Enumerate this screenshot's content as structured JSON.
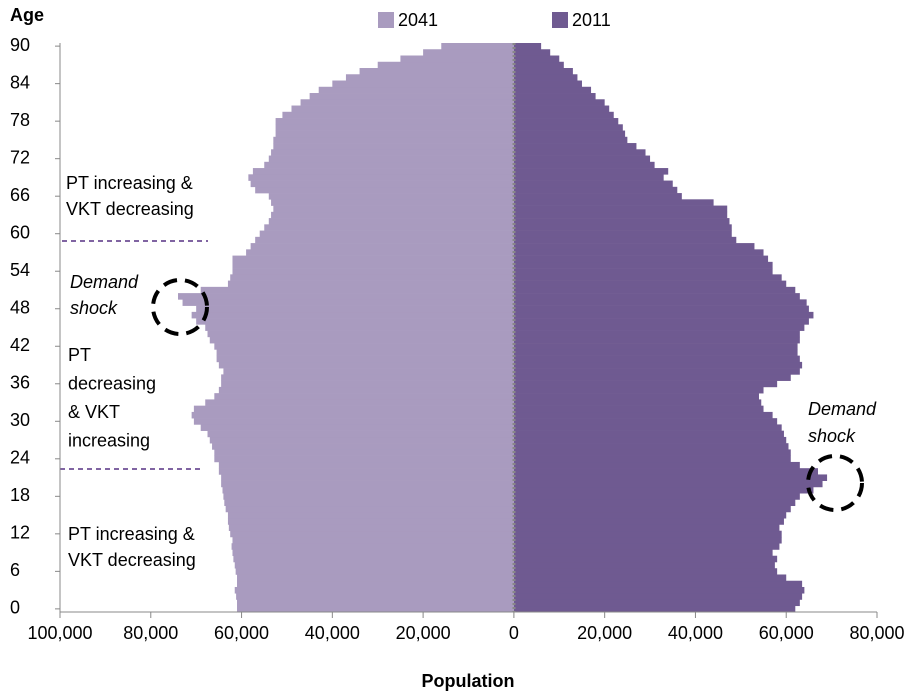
{
  "chart_data": {
    "type": "bar",
    "orientation": "horizontal",
    "y_title": "Age",
    "x_title": "Population",
    "y": [
      0,
      1,
      2,
      3,
      4,
      5,
      6,
      7,
      8,
      9,
      10,
      11,
      12,
      13,
      14,
      15,
      16,
      17,
      18,
      19,
      20,
      21,
      22,
      23,
      24,
      25,
      26,
      27,
      28,
      29,
      30,
      31,
      32,
      33,
      34,
      35,
      36,
      37,
      38,
      39,
      40,
      41,
      42,
      43,
      44,
      45,
      46,
      47,
      48,
      49,
      50,
      51,
      52,
      53,
      54,
      55,
      56,
      57,
      58,
      59,
      60,
      61,
      62,
      63,
      64,
      65,
      66,
      67,
      68,
      69,
      70,
      71,
      72,
      73,
      74,
      75,
      76,
      77,
      78,
      79,
      80,
      81,
      82,
      83,
      84,
      85,
      86,
      87,
      88,
      89,
      90
    ],
    "series": [
      {
        "name": "2041",
        "color": "#a99bbf",
        "values": [
          -61000,
          -61000,
          -61200,
          -61500,
          -61000,
          -61000,
          -61300,
          -61500,
          -61800,
          -62000,
          -62200,
          -62000,
          -62500,
          -62800,
          -63000,
          -63000,
          -63500,
          -63800,
          -64000,
          -64200,
          -64500,
          -64500,
          -65000,
          -65000,
          -66000,
          -66000,
          -66500,
          -67000,
          -67500,
          -69000,
          -70500,
          -71000,
          -70500,
          -68000,
          -66000,
          -65000,
          -64500,
          -64500,
          -64000,
          -65000,
          -65500,
          -65500,
          -66000,
          -67000,
          -67500,
          -68000,
          -70000,
          -71000,
          -70000,
          -73000,
          -74000,
          -69000,
          -63000,
          -62500,
          -62000,
          -62000,
          -62000,
          -59000,
          -58000,
          -57000,
          -56000,
          -55000,
          -54000,
          -53500,
          -53000,
          -53500,
          -54000,
          -57000,
          -58000,
          -58500,
          -57500,
          -55000,
          -54000,
          -53500,
          -53000,
          -53000,
          -52500,
          -52500,
          -52500,
          -51000,
          -49000,
          -47000,
          -45000,
          -43000,
          -40000,
          -37000,
          -34000,
          -30000,
          -25000,
          -20000,
          -16000
        ]
      },
      {
        "name": "2011",
        "color": "#6f5a91",
        "values": [
          62000,
          63000,
          63500,
          64000,
          63500,
          60000,
          58000,
          57500,
          58000,
          57000,
          58500,
          59000,
          59000,
          58500,
          59500,
          60000,
          61000,
          62000,
          63000,
          66000,
          68000,
          69000,
          67000,
          63000,
          61000,
          61000,
          60500,
          60000,
          59500,
          59000,
          58000,
          57000,
          55000,
          54500,
          54000,
          55000,
          58000,
          61000,
          63000,
          63500,
          63000,
          62500,
          62500,
          63000,
          63000,
          64000,
          65000,
          66000,
          65000,
          64500,
          63000,
          62000,
          60000,
          59000,
          57000,
          57000,
          56000,
          55000,
          53000,
          49000,
          48000,
          48000,
          47500,
          47000,
          47000,
          44000,
          37000,
          36000,
          35000,
          33000,
          34000,
          31000,
          30000,
          29000,
          27000,
          25000,
          24500,
          24000,
          23000,
          22000,
          21000,
          20000,
          18000,
          17000,
          15000,
          14000,
          13000,
          11000,
          10000,
          8000,
          6000
        ]
      }
    ],
    "xlim": [
      -100000,
      80000
    ],
    "xticks": [
      {
        "value": -100000,
        "label": "100,000"
      },
      {
        "value": -80000,
        "label": "80,000"
      },
      {
        "value": -60000,
        "label": "60,000"
      },
      {
        "value": -40000,
        "label": "40,000"
      },
      {
        "value": -20000,
        "label": "20,000"
      },
      0,
      {
        "value": 20000,
        "label": "20,000"
      },
      {
        "value": 40000,
        "label": "40,000"
      },
      {
        "value": 60000,
        "label": "60,000"
      },
      {
        "value": 80000,
        "label": "80,000"
      }
    ],
    "ylim": [
      -0.5,
      90.5
    ],
    "yticks": [
      0,
      6,
      12,
      18,
      24,
      30,
      36,
      42,
      48,
      54,
      60,
      66,
      72,
      78,
      84,
      90
    ],
    "annotations": [
      {
        "lines": [
          "PT increasing &",
          "VKT decreasing"
        ]
      },
      {
        "lines": [
          "Demand",
          "shock"
        ]
      },
      {
        "lines": [
          "PT",
          "decreasing",
          "& VKT",
          "increasing"
        ]
      },
      {
        "lines": [
          "PT increasing &",
          "VKT decreasing"
        ]
      },
      {
        "lines": [
          "Demand",
          "shock"
        ]
      }
    ]
  }
}
